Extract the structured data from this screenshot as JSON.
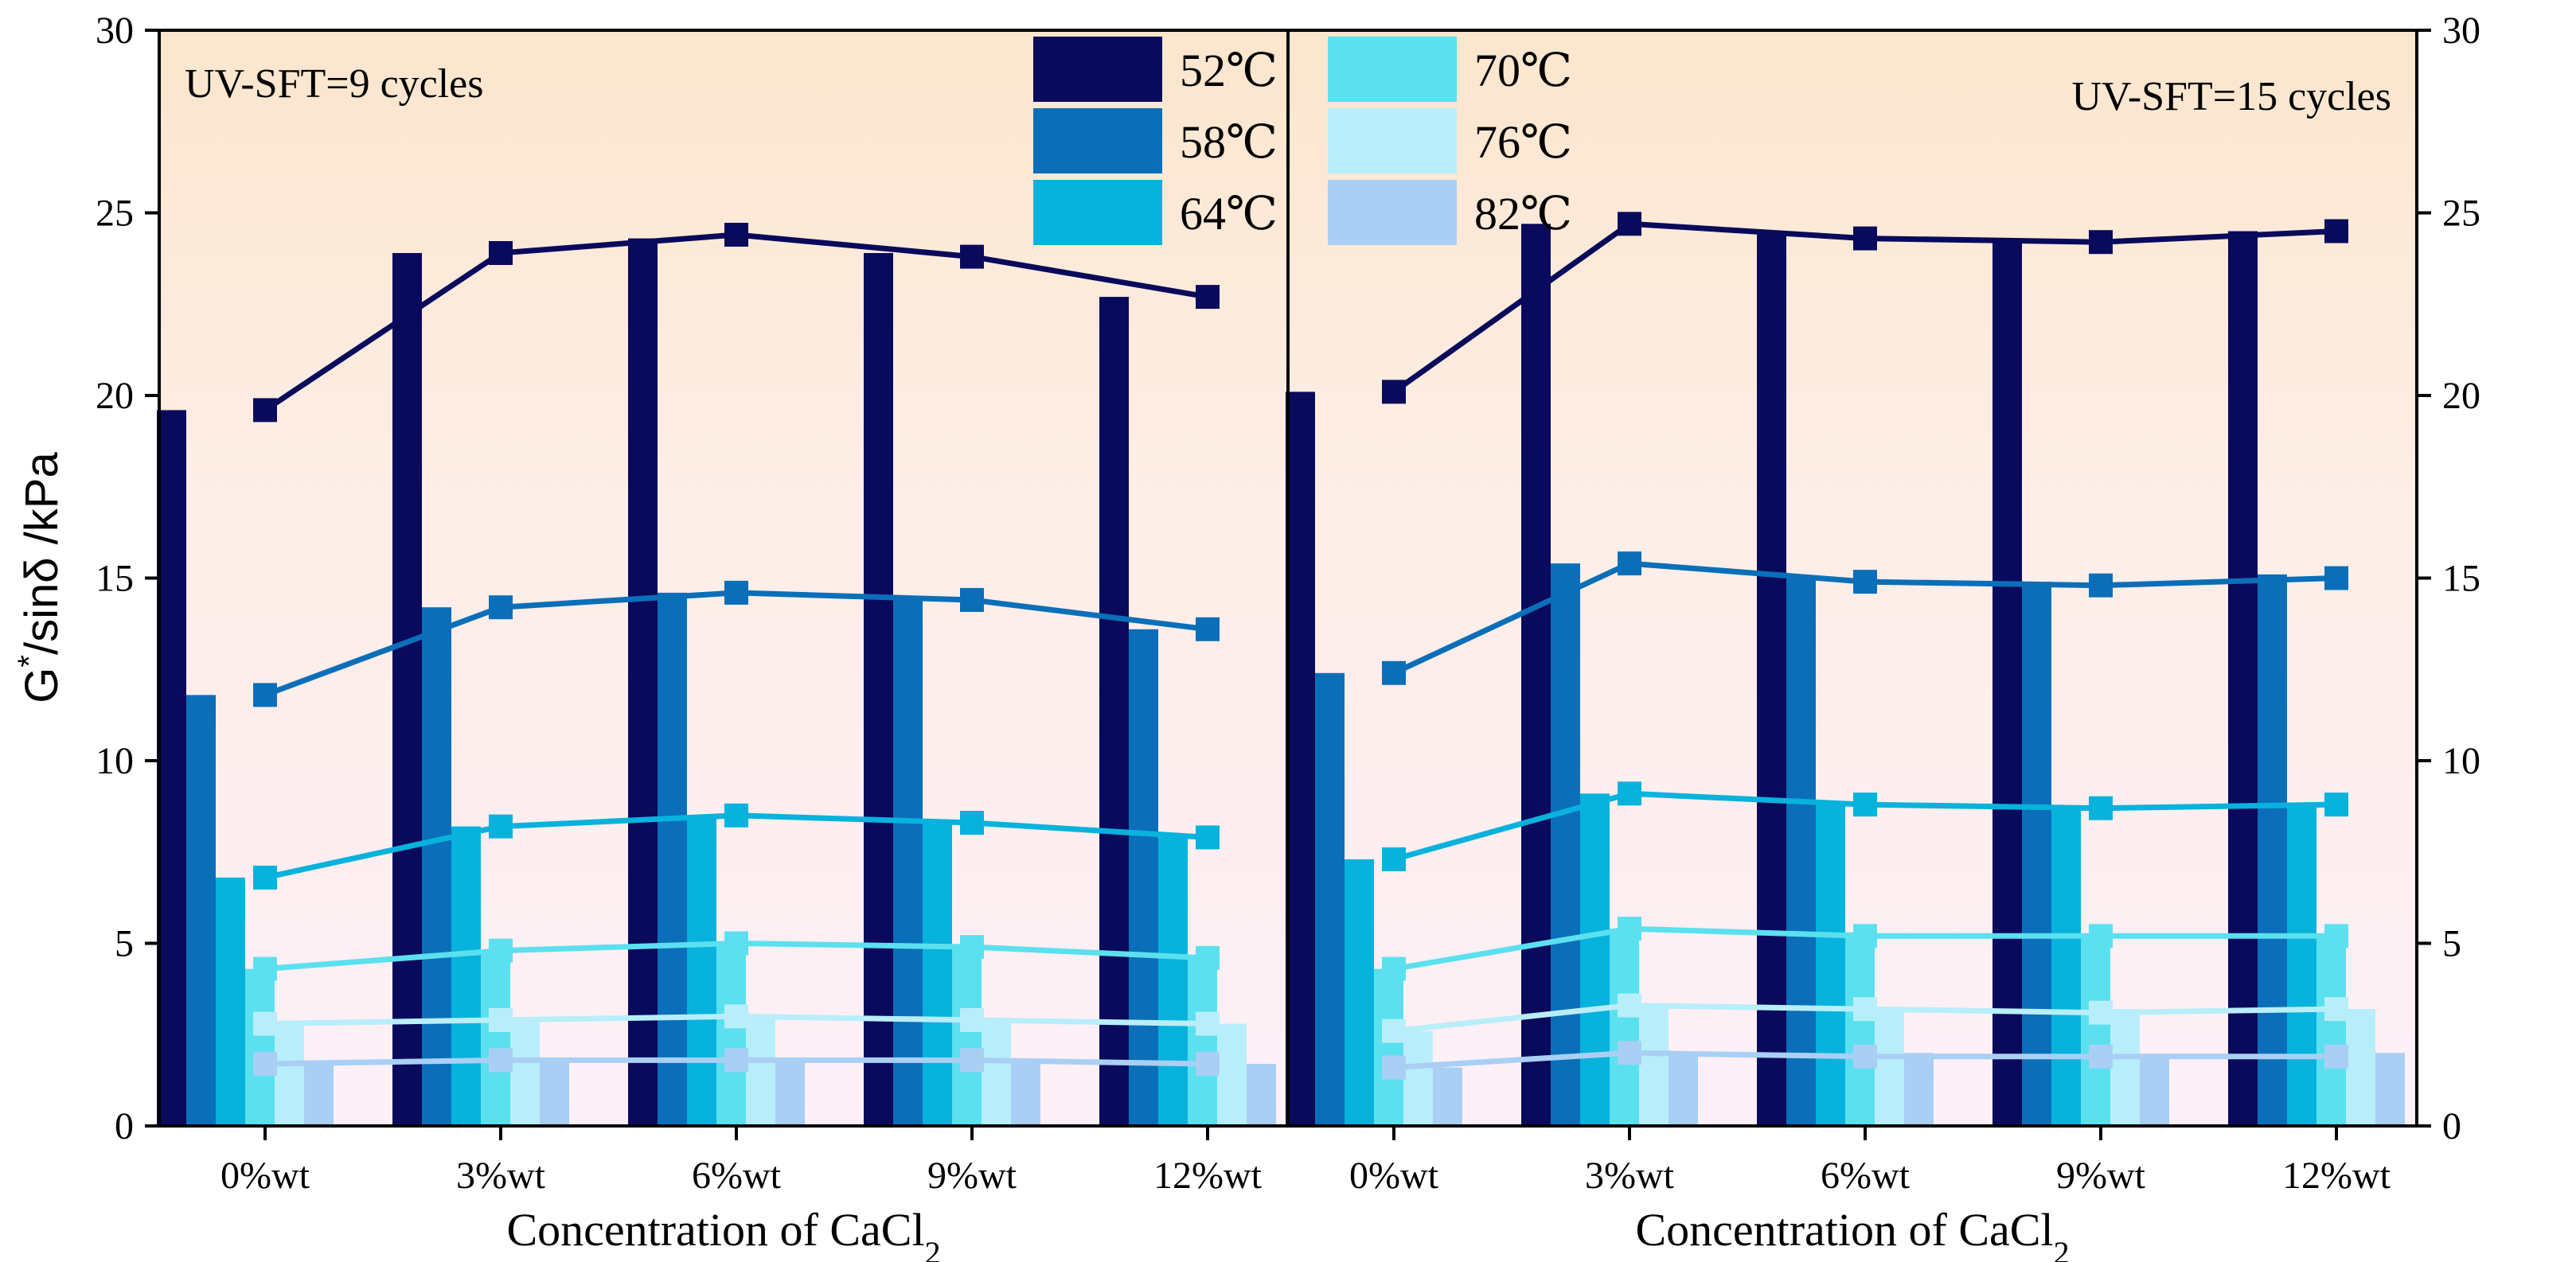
{
  "chart_data": {
    "type": "bar",
    "ylabel": {
      "main": "G",
      "sup": "*",
      "rest": "/sinδ /kPa"
    },
    "xlabel": {
      "main": "Concentration of CaCl",
      "sub": "2"
    },
    "ylim": [
      0,
      30
    ],
    "yticks": [
      0,
      5,
      10,
      15,
      20,
      25,
      30
    ],
    "categories": [
      "0%wt",
      "3%wt",
      "6%wt",
      "9%wt",
      "12%wt"
    ],
    "legend": [
      {
        "name": "52℃",
        "color": "#0a0a5c"
      },
      {
        "name": "58℃",
        "color": "#0a6fb8"
      },
      {
        "name": "64℃",
        "color": "#07b2dc"
      },
      {
        "name": "70℃",
        "color": "#5be0ef"
      },
      {
        "name": "76℃",
        "color": "#b8eefa"
      },
      {
        "name": "82℃",
        "color": "#a9cff5"
      }
    ],
    "panels": [
      {
        "title": "UV-SFT=9 cycles",
        "series": [
          {
            "name": "52℃",
            "values": [
              19.6,
              23.9,
              24.3,
              23.9,
              22.7
            ]
          },
          {
            "name": "58℃",
            "values": [
              11.8,
              14.2,
              14.6,
              14.4,
              13.6
            ]
          },
          {
            "name": "64℃",
            "values": [
              6.8,
              8.2,
              8.5,
              8.3,
              7.9
            ]
          },
          {
            "name": "70℃",
            "values": [
              4.3,
              4.8,
              5.0,
              4.9,
              4.6
            ]
          },
          {
            "name": "76℃",
            "values": [
              2.8,
              2.9,
              3.0,
              2.9,
              2.8
            ]
          },
          {
            "name": "82℃",
            "values": [
              1.7,
              1.8,
              1.8,
              1.8,
              1.7
            ]
          }
        ],
        "line_series": [
          {
            "name": "52℃",
            "values": [
              19.6,
              23.9,
              24.4,
              23.8,
              22.7
            ]
          },
          {
            "name": "58℃",
            "values": [
              11.8,
              14.2,
              14.6,
              14.4,
              13.6
            ]
          },
          {
            "name": "64℃",
            "values": [
              6.8,
              8.2,
              8.5,
              8.3,
              7.9
            ]
          },
          {
            "name": "70℃",
            "values": [
              4.3,
              4.8,
              5.0,
              4.9,
              4.6
            ]
          },
          {
            "name": "76℃",
            "values": [
              2.8,
              2.9,
              3.0,
              2.9,
              2.8
            ]
          },
          {
            "name": "82℃",
            "values": [
              1.7,
              1.8,
              1.8,
              1.8,
              1.7
            ]
          }
        ]
      },
      {
        "title": "UV-SFT=15 cycles",
        "series": [
          {
            "name": "52℃",
            "values": [
              20.1,
              24.7,
              24.5,
              24.2,
              24.5
            ]
          },
          {
            "name": "58℃",
            "values": [
              12.4,
              15.4,
              15.0,
              14.9,
              15.1
            ]
          },
          {
            "name": "64℃",
            "values": [
              7.3,
              9.1,
              8.8,
              8.7,
              8.8
            ]
          },
          {
            "name": "70℃",
            "values": [
              4.3,
              5.4,
              5.3,
              5.2,
              5.2
            ]
          },
          {
            "name": "76℃",
            "values": [
              2.6,
              3.3,
              3.2,
              3.2,
              3.2
            ]
          },
          {
            "name": "82℃",
            "values": [
              1.6,
              2.0,
              2.0,
              1.9,
              2.0
            ]
          }
        ],
        "line_series": [
          {
            "name": "52℃",
            "values": [
              20.1,
              24.7,
              24.3,
              24.2,
              24.5
            ]
          },
          {
            "name": "58℃",
            "values": [
              12.4,
              15.4,
              14.9,
              14.8,
              15.0
            ]
          },
          {
            "name": "64℃",
            "values": [
              7.3,
              9.1,
              8.8,
              8.7,
              8.8
            ]
          },
          {
            "name": "70℃",
            "values": [
              4.3,
              5.4,
              5.2,
              5.2,
              5.2
            ]
          },
          {
            "name": "76℃",
            "values": [
              2.6,
              3.3,
              3.2,
              3.1,
              3.2
            ]
          },
          {
            "name": "82℃",
            "values": [
              1.6,
              2.0,
              1.9,
              1.9,
              1.9
            ]
          }
        ]
      }
    ]
  }
}
